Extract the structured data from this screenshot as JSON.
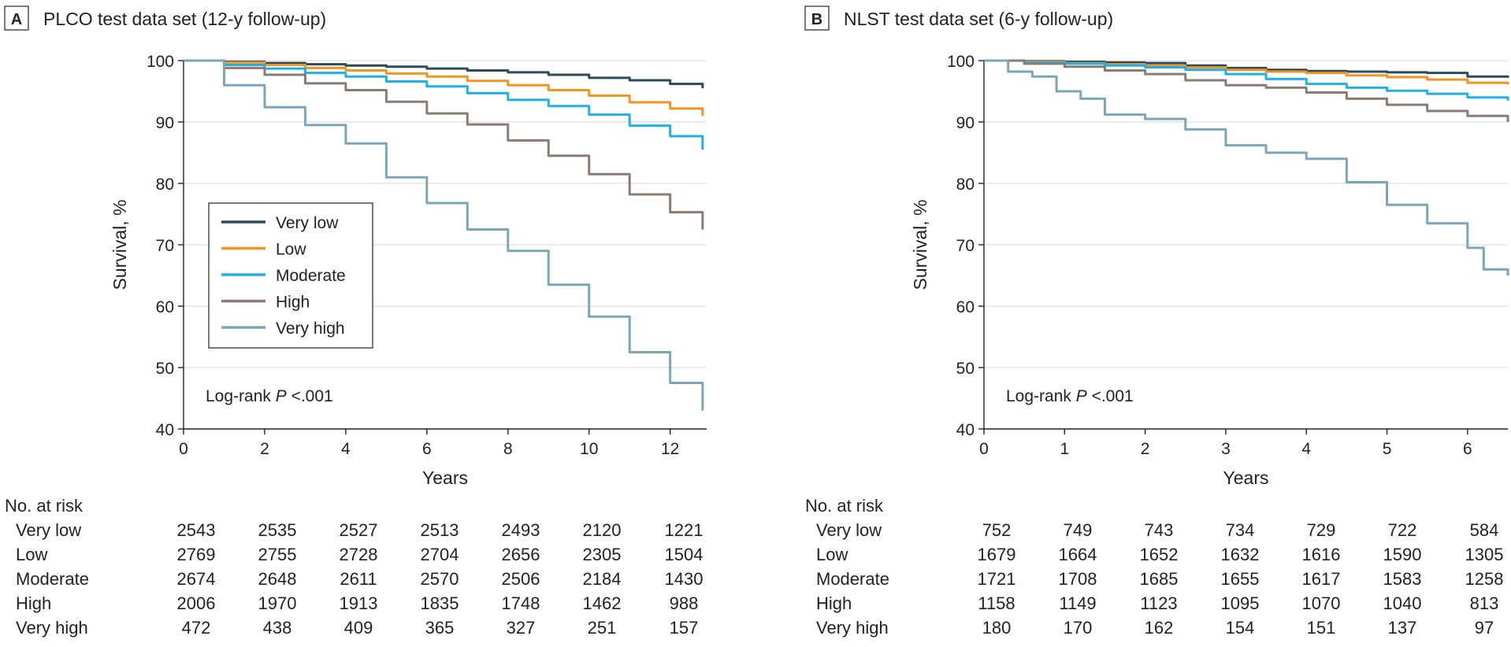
{
  "panels": [
    {
      "letter": "A",
      "title": "PLCO test data set (12-y follow-up)",
      "chart_data": {
        "type": "line",
        "ylabel": "Survival, %",
        "xlabel": "Years",
        "xlim": [
          0,
          12.9
        ],
        "ylim": [
          40,
          100
        ],
        "xticks": [
          0,
          2,
          4,
          6,
          8,
          10,
          12
        ],
        "yticks": [
          40,
          50,
          60,
          70,
          80,
          90,
          100
        ],
        "grid": "horizontal",
        "legend_position": "center-left",
        "annotation": {
          "prefix": "Log-rank ",
          "italic": "P",
          "suffix": " <.001"
        },
        "series": [
          {
            "name": "Very low",
            "color": "#2b4a5a",
            "x": [
              0,
              1,
              2,
              3,
              4,
              5,
              6,
              7,
              8,
              9,
              10,
              11,
              12,
              12.8
            ],
            "y": [
              100,
              99.8,
              99.6,
              99.4,
              99.2,
              99.0,
              98.7,
              98.4,
              98.1,
              97.7,
              97.2,
              96.8,
              96.2,
              95.5
            ]
          },
          {
            "name": "Low",
            "color": "#f2951f",
            "x": [
              0,
              1,
              2,
              3,
              4,
              5,
              6,
              7,
              8,
              9,
              10,
              11,
              12,
              12.8
            ],
            "y": [
              100,
              99.7,
              99.3,
              98.8,
              98.4,
              97.9,
              97.4,
              96.7,
              96.0,
              95.2,
              94.3,
              93.2,
              92.2,
              91.0
            ]
          },
          {
            "name": "Moderate",
            "color": "#20b0e8",
            "x": [
              0,
              1,
              2,
              3,
              4,
              5,
              6,
              7,
              8,
              9,
              10,
              11,
              12,
              12.8
            ],
            "y": [
              100,
              99.3,
              98.7,
              98.0,
              97.4,
              96.6,
              95.8,
              94.7,
              93.6,
              92.6,
              91.2,
              89.4,
              87.7,
              85.5
            ]
          },
          {
            "name": "High",
            "color": "#8b7b72",
            "x": [
              0,
              1,
              2,
              3,
              4,
              5,
              6,
              7,
              8,
              9,
              10,
              11,
              12,
              12.8
            ],
            "y": [
              100,
              98.8,
              97.7,
              96.3,
              95.2,
              93.3,
              91.4,
              89.6,
              87.0,
              84.5,
              81.5,
              78.2,
              75.3,
              72.5
            ]
          },
          {
            "name": "Very high",
            "color": "#7aa6b8",
            "x": [
              0,
              1,
              2,
              3,
              4,
              5,
              6,
              7,
              8,
              9,
              10,
              11,
              12,
              12.8
            ],
            "y": [
              100,
              96.0,
              92.4,
              89.5,
              86.5,
              81.0,
              76.8,
              72.5,
              69.0,
              63.5,
              58.3,
              52.5,
              47.5,
              43.0
            ]
          }
        ]
      },
      "risk_table": {
        "header": "No. at risk",
        "rows": [
          {
            "label": "Very low",
            "values": [
              "2543",
              "2535",
              "2527",
              "2513",
              "2493",
              "2120",
              "1221"
            ]
          },
          {
            "label": "Low",
            "values": [
              "2769",
              "2755",
              "2728",
              "2704",
              "2656",
              "2305",
              "1504"
            ]
          },
          {
            "label": "Moderate",
            "values": [
              "2674",
              "2648",
              "2611",
              "2570",
              "2506",
              "2184",
              "1430"
            ]
          },
          {
            "label": "High",
            "values": [
              "2006",
              "1970",
              "1913",
              "1835",
              "1748",
              "1462",
              "988"
            ]
          },
          {
            "label": "Very high",
            "values": [
              "472",
              "438",
              "409",
              "365",
              "327",
              "251",
              "157"
            ]
          }
        ]
      }
    },
    {
      "letter": "B",
      "title": "NLST test data set (6-y follow-up)",
      "chart_data": {
        "type": "line",
        "ylabel": "Survival, %",
        "xlabel": "Years",
        "xlim": [
          0,
          6.5
        ],
        "ylim": [
          40,
          100
        ],
        "xticks": [
          0,
          1,
          2,
          3,
          4,
          5,
          6
        ],
        "yticks": [
          40,
          50,
          60,
          70,
          80,
          90,
          100
        ],
        "grid": "horizontal",
        "legend_position": "none",
        "annotation": {
          "prefix": "Log-rank ",
          "italic": "P",
          "suffix": " <.001"
        },
        "series": [
          {
            "name": "Very low",
            "color": "#2b4a5a",
            "x": [
              0,
              0.5,
              1,
              1.5,
              2,
              2.5,
              3,
              3.5,
              4,
              4.5,
              5,
              5.5,
              6,
              6.5
            ],
            "y": [
              100,
              99.9,
              99.8,
              99.7,
              99.6,
              99.2,
              98.8,
              98.5,
              98.3,
              98.2,
              98.1,
              98.0,
              97.4,
              97.2
            ]
          },
          {
            "name": "Low",
            "color": "#f2951f",
            "x": [
              0,
              0.5,
              1,
              1.5,
              2,
              2.5,
              3,
              3.5,
              4,
              4.5,
              5,
              5.5,
              6,
              6.5
            ],
            "y": [
              100,
              99.8,
              99.6,
              99.4,
              99.2,
              98.9,
              98.5,
              98.2,
              98.0,
              97.6,
              97.3,
              96.9,
              96.4,
              96.1
            ]
          },
          {
            "name": "Moderate",
            "color": "#20b0e8",
            "x": [
              0,
              0.5,
              1,
              1.5,
              2,
              2.5,
              3,
              3.5,
              4,
              4.5,
              5,
              5.5,
              6,
              6.5
            ],
            "y": [
              100,
              99.7,
              99.5,
              99.2,
              98.9,
              98.5,
              97.8,
              97.0,
              96.2,
              95.6,
              95.1,
              94.6,
              94.0,
              93.5
            ]
          },
          {
            "name": "High",
            "color": "#8b7b72",
            "x": [
              0,
              0.5,
              1,
              1.5,
              2,
              2.5,
              3,
              3.5,
              4,
              4.5,
              5,
              5.5,
              6,
              6.5
            ],
            "y": [
              100,
              99.5,
              99.0,
              98.4,
              97.8,
              96.8,
              96.0,
              95.6,
              94.8,
              93.8,
              92.8,
              91.8,
              91.0,
              90.0
            ]
          },
          {
            "name": "Very high",
            "color": "#7aa6b8",
            "x": [
              0,
              0.3,
              0.6,
              0.9,
              1.2,
              1.5,
              2,
              2.5,
              3,
              3.5,
              4,
              4.5,
              5,
              5.5,
              6,
              6.2,
              6.5
            ],
            "y": [
              100,
              98.2,
              97.4,
              95.0,
              93.8,
              91.2,
              90.5,
              88.8,
              86.2,
              85.0,
              84.0,
              80.2,
              76.5,
              73.5,
              69.5,
              66.0,
              65.0
            ]
          }
        ]
      },
      "risk_table": {
        "header": "No. at risk",
        "rows": [
          {
            "label": "Very low",
            "values": [
              "752",
              "749",
              "743",
              "734",
              "729",
              "722",
              "584"
            ]
          },
          {
            "label": "Low",
            "values": [
              "1679",
              "1664",
              "1652",
              "1632",
              "1616",
              "1590",
              "1305"
            ]
          },
          {
            "label": "Moderate",
            "values": [
              "1721",
              "1708",
              "1685",
              "1655",
              "1617",
              "1583",
              "1258"
            ]
          },
          {
            "label": "High",
            "values": [
              "1158",
              "1149",
              "1123",
              "1095",
              "1070",
              "1040",
              "813"
            ]
          },
          {
            "label": "Very high",
            "values": [
              "180",
              "170",
              "162",
              "154",
              "151",
              "137",
              "97"
            ]
          }
        ]
      }
    }
  ]
}
